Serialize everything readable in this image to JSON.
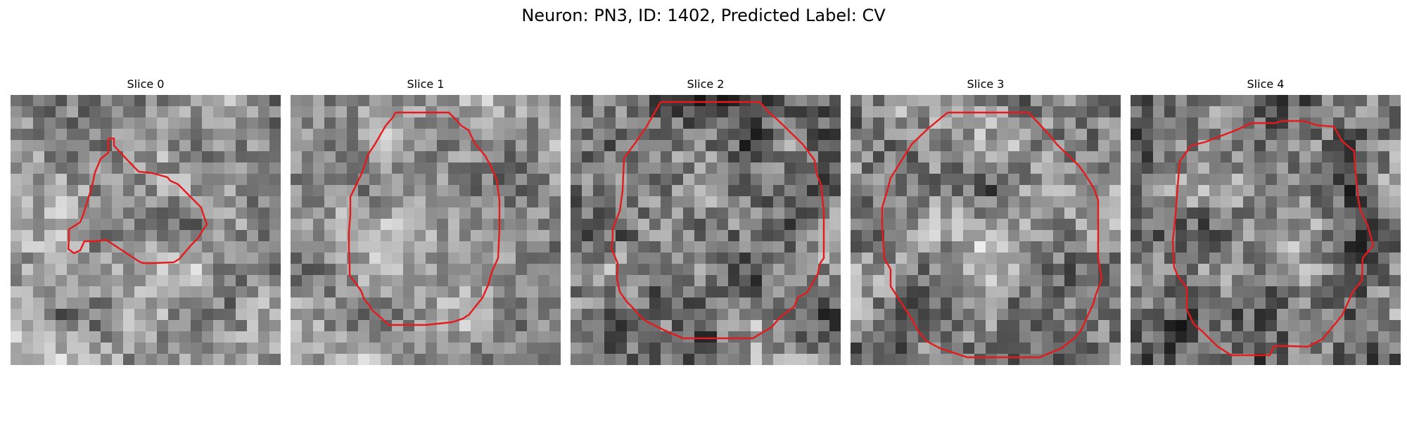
{
  "figure": {
    "title": "Neuron: PN3, ID: 1402, Predicted Label: CV",
    "contour_color": "#e41a1c"
  },
  "slices": [
    {
      "label": "Slice 0"
    },
    {
      "label": "Slice 1"
    },
    {
      "label": "Slice 2"
    },
    {
      "label": "Slice 3"
    },
    {
      "label": "Slice 4"
    }
  ]
}
